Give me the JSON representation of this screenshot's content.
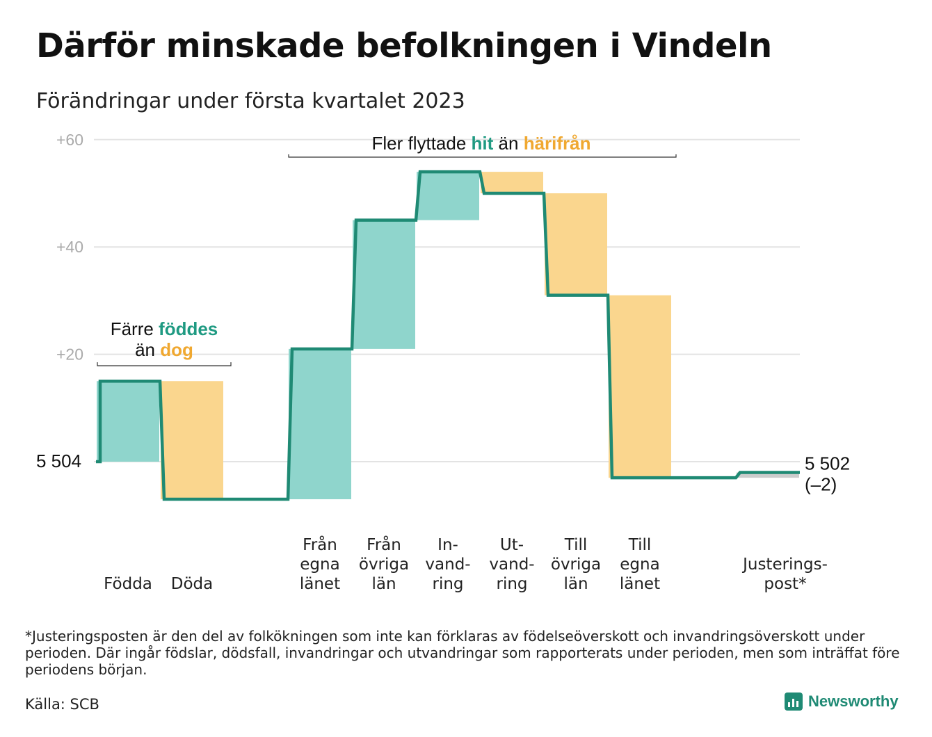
{
  "title": "Därför minskade befolkningen i Vindeln",
  "subtitle": "Förändringar under första kvartalet 2023",
  "footnote": "*Justeringsposten är den del av folkökningen som inte kan förklaras av födelseöverskott och invandringsöverskott under perioden. Där ingår födslar, dödsfall, invandringar och utvandringar som rapporterats under perioden, men som inträffat före periodens början.",
  "source": "Källa: SCB",
  "brand": "Newsworthy",
  "colors": {
    "increase": "#8fd5cc",
    "decrease": "#fad68e",
    "adjustment": "#cccccc",
    "line": "#1f8a74",
    "accent_teal": "#1f9a82",
    "accent_orange": "#f0a830",
    "grid": "#e3e3e3"
  },
  "chart_data": {
    "type": "waterfall",
    "title": "Därför minskade befolkningen i Vindeln",
    "subtitle": "Förändringar under första kvartalet 2023",
    "start_label": "5 504",
    "start_value": 5504,
    "end_label": "5 502",
    "end_change": "(–2)",
    "end_value": 5502,
    "ylim": [
      -8,
      62
    ],
    "y_ticks": [
      {
        "value": 20,
        "label": "+20"
      },
      {
        "value": 40,
        "label": "+40"
      },
      {
        "value": 60,
        "label": "+60"
      }
    ],
    "grid": true,
    "steps": [
      {
        "category": [
          "Födda"
        ],
        "change": 15,
        "kind": "increase"
      },
      {
        "category": [
          "Döda"
        ],
        "change": -22,
        "kind": "decrease"
      },
      {
        "category": [],
        "change": 0,
        "kind": "gap"
      },
      {
        "category": [
          "Från",
          "egna",
          "länet"
        ],
        "change": 28,
        "kind": "increase"
      },
      {
        "category": [
          "Från",
          "övriga",
          "län"
        ],
        "change": 24,
        "kind": "increase"
      },
      {
        "category": [
          "In-",
          "vand-",
          "ring"
        ],
        "change": 9,
        "kind": "increase"
      },
      {
        "category": [
          "Ut-",
          "vand-",
          "ring"
        ],
        "change": -4,
        "kind": "decrease"
      },
      {
        "category": [
          "Till",
          "övriga",
          "län"
        ],
        "change": -19,
        "kind": "decrease"
      },
      {
        "category": [
          "Till",
          "egna",
          "länet"
        ],
        "change": -34,
        "kind": "decrease"
      },
      {
        "category": [],
        "change": 0,
        "kind": "gap"
      },
      {
        "category": [
          "Justerings-",
          "post*"
        ],
        "change": 1,
        "kind": "adjustment"
      }
    ],
    "annotations": [
      {
        "parts": [
          {
            "text": "Färre ",
            "style": "plain"
          },
          {
            "text": "föddes",
            "style": "teal"
          }
        ],
        "line2": [
          {
            "text": "än ",
            "style": "plain"
          },
          {
            "text": "dog",
            "style": "orange"
          }
        ]
      },
      {
        "parts": [
          {
            "text": "Fler flyttade ",
            "style": "plain"
          },
          {
            "text": "hit",
            "style": "teal"
          },
          {
            "text": " än ",
            "style": "plain"
          },
          {
            "text": "härifrån",
            "style": "orange"
          }
        ]
      }
    ]
  }
}
